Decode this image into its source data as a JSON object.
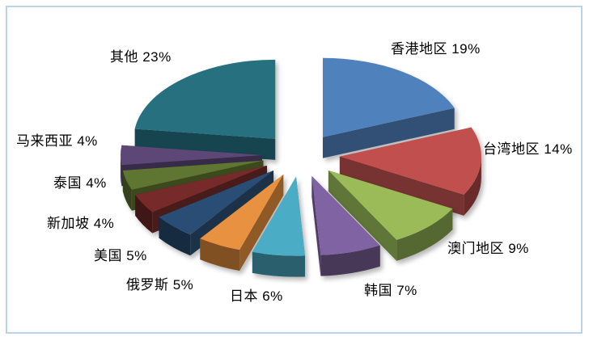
{
  "page": {
    "background": "#FFFFFF"
  },
  "frame": {
    "border_color": "#BDD2EC",
    "background": "#FFFFFF"
  },
  "chart_data": {
    "type": "pie",
    "style": "3d-exploded",
    "title": "",
    "unit": "%",
    "direction": "clockwise",
    "start_angle_deg": -90,
    "legend_position": "none",
    "data_label_format": "name value%",
    "label_color": "#000000",
    "slices": [
      {
        "label": "香港地区",
        "value": 19,
        "display": "香港地区 19%",
        "color": "#4F81BD"
      },
      {
        "label": "台湾地区",
        "value": 14,
        "display": "台湾地区 14%",
        "color": "#C0504D"
      },
      {
        "label": "澳门地区",
        "value": 9,
        "display": "澳门地区 9%",
        "color": "#9BBB59"
      },
      {
        "label": "韩国",
        "value": 7,
        "display": "韩国 7%",
        "color": "#8064A2"
      },
      {
        "label": "日本",
        "value": 6,
        "display": "日本 6%",
        "color": "#4BACC6"
      },
      {
        "label": "俄罗斯",
        "value": 5,
        "display": "俄罗斯 5%",
        "color": "#E8913F"
      },
      {
        "label": "美国",
        "value": 5,
        "display": "美国 5%",
        "color": "#2C4D75"
      },
      {
        "label": "新加坡",
        "value": 4,
        "display": "新加坡 4%",
        "color": "#772C2A"
      },
      {
        "label": "泰国",
        "value": 4,
        "display": "泰国 4%",
        "color": "#5F7530"
      },
      {
        "label": "马来西亚",
        "value": 4,
        "display": "马来西亚 4%",
        "color": "#5C4776"
      },
      {
        "label": "其他",
        "value": 23,
        "display": "其他 23%",
        "color": "#26707F"
      }
    ]
  }
}
